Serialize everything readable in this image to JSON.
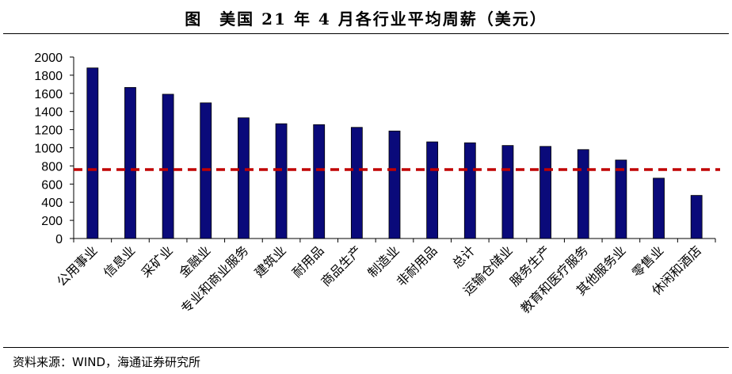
{
  "title": "图　美国 21 年 4 月各行业平均周薪（美元）",
  "source": "资料来源：WIND，海通证券研究所",
  "colors": {
    "bar": "#0a0a7a",
    "reference_line": "#c00000"
  },
  "chart_data": {
    "type": "bar",
    "title": "图　美国 21 年 4 月各行业平均周薪（美元）",
    "xlabel": "",
    "ylabel": "",
    "ylim": [
      0,
      2000
    ],
    "yticks": [
      0,
      200,
      400,
      600,
      800,
      1000,
      1200,
      1400,
      1600,
      1800,
      2000
    ],
    "categories": [
      "公用事业",
      "信息业",
      "采矿业",
      "金融业",
      "专业和商业服务",
      "建筑业",
      "耐用品",
      "商品生产",
      "制造业",
      "非耐用品",
      "总计",
      "运输仓储业",
      "服务生产",
      "教育和医疗服务",
      "其他服务业",
      "零售业",
      "休闲和酒店"
    ],
    "values": [
      1880,
      1665,
      1590,
      1495,
      1330,
      1265,
      1255,
      1225,
      1185,
      1065,
      1055,
      1025,
      1015,
      980,
      865,
      665,
      475
    ],
    "reference_line": {
      "value": 760,
      "style": "dashed"
    },
    "grid": false,
    "legend": "none"
  }
}
